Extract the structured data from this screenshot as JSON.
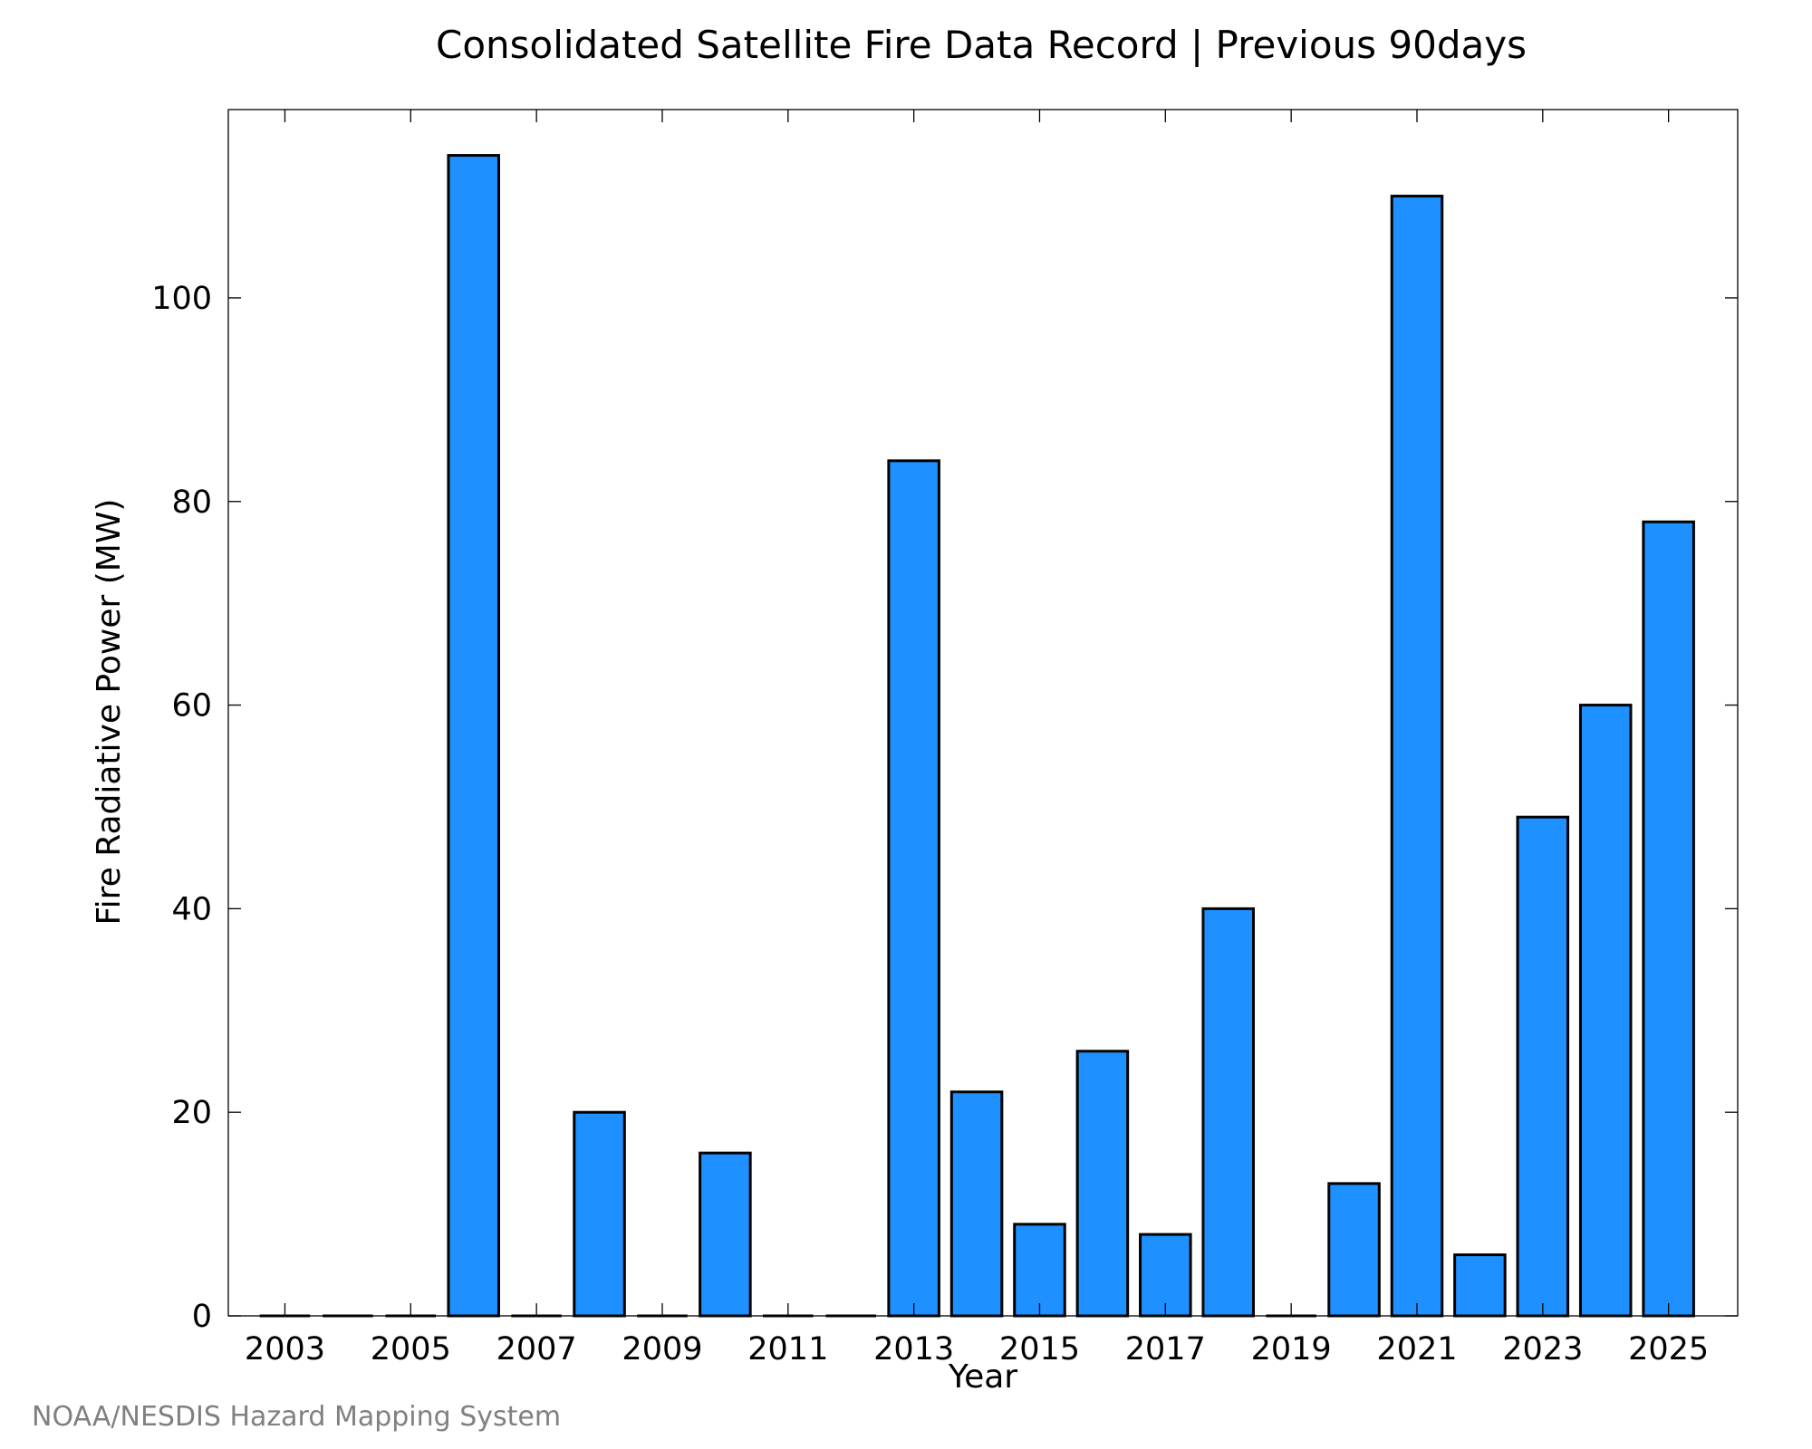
{
  "chart_data": {
    "type": "bar",
    "title": "Consolidated Satellite Fire Data Record | Previous 90days",
    "xlabel": "Year",
    "ylabel": "Fire Radiative Power (MW)",
    "x": [
      2003,
      2004,
      2005,
      2006,
      2007,
      2008,
      2009,
      2010,
      2011,
      2012,
      2013,
      2014,
      2015,
      2016,
      2017,
      2018,
      2019,
      2020,
      2021,
      2022,
      2023,
      2024,
      2025
    ],
    "values": [
      0,
      0,
      0,
      114,
      0,
      20,
      0,
      16,
      0,
      0,
      84,
      22,
      9,
      26,
      8,
      40,
      0,
      13,
      110,
      6,
      49,
      60,
      78
    ],
    "x_ticks": [
      "2003",
      "2005",
      "2007",
      "2009",
      "2011",
      "2013",
      "2015",
      "2017",
      "2019",
      "2021",
      "2023",
      "2025"
    ],
    "y_ticks": [
      "0",
      "20",
      "40",
      "60",
      "80",
      "100"
    ],
    "xlim": [
      2002.1,
      2026.1
    ],
    "ylim": [
      0,
      118.5
    ],
    "bar_color": "#1E90FF",
    "grid": false,
    "legend": "none"
  },
  "credit": "NOAA/NESDIS Hazard Mapping System"
}
